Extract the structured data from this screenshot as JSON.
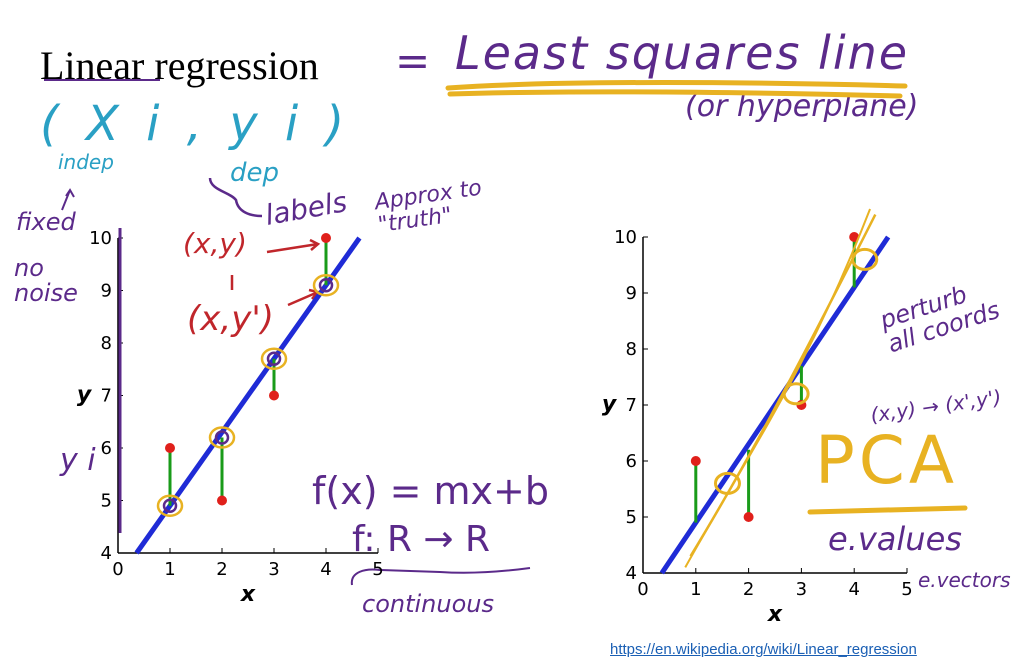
{
  "title": "Linear regression",
  "annotations": {
    "equals": "=",
    "least_squares": "Least squares line",
    "or_hyperplane": "(or hyperplane)",
    "pair": "( X i , y i )",
    "indep": "indep",
    "dep": "dep",
    "fixed": "fixed",
    "no_noise": "no noise",
    "labels": "labels",
    "approx_truth": "Approx to \"truth\"",
    "xy": "(x,y)",
    "xy_prime": "(x,y')",
    "y_i": "y i",
    "fx": "f(x) = mx+b",
    "f_map": "f: R → R",
    "continuous": "continuous",
    "perturb": "perturb all coords",
    "coord_map": "(x,y) → (x',y')",
    "pca": "PCA",
    "evalues": "e.values",
    "evectors": "e.vectors"
  },
  "source_url": "https://en.wikipedia.org/wiki/Linear_regression",
  "colors": {
    "fit_line": "#1f2bd6",
    "residual": "#1a9b1a",
    "point": "#e0201b",
    "yellow_ink": "#e8b222",
    "purple_ink": "#5b2a8a",
    "teal_ink": "#2aa0c4",
    "red_ink": "#c0262b"
  },
  "chart_data": [
    {
      "type": "scatter",
      "id": "left",
      "title": "",
      "xlabel": "x",
      "ylabel": "y",
      "xlim": [
        0,
        5
      ],
      "ylim": [
        4,
        10
      ],
      "xticks": [
        "0",
        "1",
        "2",
        "3",
        "4",
        "5"
      ],
      "yticks": [
        "4",
        "5",
        "6",
        "7",
        "8",
        "9",
        "10"
      ],
      "points": [
        [
          1,
          6
        ],
        [
          2,
          5
        ],
        [
          3,
          7
        ],
        [
          4,
          10
        ]
      ],
      "fitted": [
        [
          1,
          4.9
        ],
        [
          2,
          6.2
        ],
        [
          3,
          7.7
        ],
        [
          4,
          9.1
        ]
      ],
      "fit_line": {
        "slope": 1.4,
        "intercept": 3.5
      },
      "residuals": "vertical"
    },
    {
      "type": "scatter",
      "id": "right",
      "title": "",
      "xlabel": "x",
      "ylabel": "y",
      "xlim": [
        0,
        5
      ],
      "ylim": [
        4,
        10
      ],
      "xticks": [
        "0",
        "1",
        "2",
        "3",
        "4",
        "5"
      ],
      "yticks": [
        "4",
        "5",
        "6",
        "7",
        "8",
        "9",
        "10"
      ],
      "points": [
        [
          1,
          6
        ],
        [
          2,
          5
        ],
        [
          3,
          7
        ],
        [
          4,
          10
        ]
      ],
      "fitted": [
        [
          1,
          4.9
        ],
        [
          2,
          6.2
        ],
        [
          3,
          7.7
        ],
        [
          4,
          9.1
        ]
      ],
      "fit_line": {
        "slope": 1.4,
        "intercept": 3.5
      },
      "residuals": "vertical"
    }
  ]
}
